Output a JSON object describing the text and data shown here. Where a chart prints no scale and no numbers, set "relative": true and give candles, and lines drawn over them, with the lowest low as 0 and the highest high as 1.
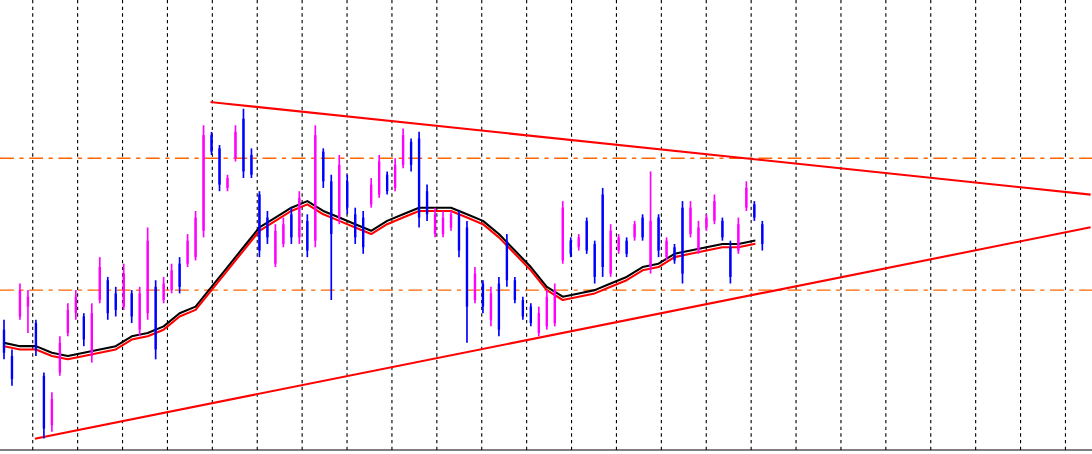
{
  "chart_data": {
    "type": "candlestick",
    "relative": true,
    "categories": [
      null,
      null,
      null,
      null,
      null,
      null,
      null,
      null,
      null,
      null,
      null,
      null,
      null,
      null,
      null,
      null,
      null,
      null,
      null,
      null,
      null,
      null,
      null,
      null,
      null,
      null,
      null,
      null,
      null,
      null,
      null,
      null,
      null,
      null,
      null,
      null,
      null,
      null,
      null,
      null,
      null,
      null,
      null,
      null,
      null,
      null,
      null,
      null,
      null,
      null,
      null,
      null,
      null,
      null,
      null,
      null,
      null,
      null,
      null,
      null,
      null,
      null,
      null,
      null,
      null,
      null,
      null,
      null,
      null,
      null,
      null,
      null,
      null,
      null,
      null,
      null,
      null,
      null,
      null,
      null,
      null,
      null,
      null,
      null,
      null,
      null,
      null,
      null,
      null,
      null,
      null,
      null,
      null,
      null,
      null,
      null,
      null,
      null,
      null,
      null,
      null,
      null,
      null,
      null,
      null,
      null,
      null,
      null,
      null,
      null,
      null,
      null,
      null,
      null,
      null,
      null,
      null,
      null,
      null,
      null,
      null,
      null,
      null,
      null,
      null,
      null,
      null,
      null,
      null,
      null,
      null,
      null,
      null,
      null,
      null,
      null,
      null
    ],
    "ohlc": [
      [
        0.33,
        0.36,
        0.24,
        0.26
      ],
      [
        0.25,
        0.27,
        0.16,
        0.18
      ],
      [
        0.37,
        0.47,
        0.36,
        0.45
      ],
      [
        0.4,
        0.45,
        0.32,
        0.43
      ],
      [
        0.35,
        0.36,
        0.25,
        0.27
      ],
      [
        0.19,
        0.2,
        0,
        0.03
      ],
      [
        0.04,
        0.14,
        0.02,
        0.12
      ],
      [
        0.2,
        0.31,
        0.19,
        0.29
      ],
      [
        0.32,
        0.41,
        0.31,
        0.39
      ],
      [
        0.38,
        0.45,
        0.36,
        0.43
      ],
      [
        0.37,
        0.38,
        0.28,
        0.3
      ],
      [
        0.25,
        0.41,
        0.23,
        0.38
      ],
      [
        0.42,
        0.55,
        0.41,
        0.52
      ],
      [
        0.48,
        0.49,
        0.36,
        0.38
      ],
      [
        0.44,
        0.46,
        0.37,
        0.39
      ],
      [
        0.4,
        0.53,
        0.39,
        0.5
      ],
      [
        0.44,
        0.45,
        0.35,
        0.37
      ],
      [
        0.33,
        0.46,
        0.31,
        0.44
      ],
      [
        0.38,
        0.64,
        0.36,
        0.6
      ],
      [
        0.46,
        0.48,
        0.24,
        0.27
      ],
      [
        0.42,
        0.49,
        0.41,
        0.47
      ],
      [
        0.45,
        0.53,
        0.44,
        0.51
      ],
      [
        0.53,
        0.55,
        0.44,
        0.46
      ],
      [
        0.53,
        0.62,
        0.52,
        0.6
      ],
      [
        0.55,
        0.69,
        0.54,
        0.67
      ],
      [
        0.63,
        0.95,
        0.61,
        0.92
      ],
      [
        0.92,
        0.93,
        0.86,
        0.87
      ],
      [
        0.88,
        0.89,
        0.75,
        0.77
      ],
      [
        0.76,
        0.8,
        0.75,
        0.79
      ],
      [
        0.85,
        0.95,
        0.84,
        0.93
      ],
      [
        0.97,
        1,
        0.79,
        0.81
      ],
      [
        0.86,
        0.88,
        0.79,
        0.8
      ],
      [
        0.74,
        0.75,
        0.55,
        0.57
      ],
      [
        0.67,
        0.69,
        0.59,
        0.61
      ],
      [
        0.53,
        0.65,
        0.52,
        0.63
      ],
      [
        0.59,
        0.67,
        0.58,
        0.65
      ],
      [
        0.68,
        0.7,
        0.59,
        0.61
      ],
      [
        0.61,
        0.75,
        0.59,
        0.73
      ],
      [
        0.66,
        0.68,
        0.55,
        0.57
      ],
      [
        0.6,
        0.95,
        0.58,
        0.92
      ],
      [
        0.87,
        0.88,
        0.76,
        0.78
      ],
      [
        0.78,
        0.8,
        0.42,
        0.62
      ],
      [
        0.67,
        0.86,
        0.65,
        0.83
      ],
      [
        0.78,
        0.8,
        0.68,
        0.7
      ],
      [
        0.68,
        0.7,
        0.59,
        0.61
      ],
      [
        0.67,
        0.69,
        0.56,
        0.58
      ],
      [
        0.71,
        0.79,
        0.7,
        0.77
      ],
      [
        0.74,
        0.86,
        0.73,
        0.84
      ],
      [
        0.8,
        0.81,
        0.74,
        0.75
      ],
      [
        0.76,
        0.85,
        0.75,
        0.83
      ],
      [
        0.83,
        0.94,
        0.82,
        0.92
      ],
      [
        0.9,
        0.91,
        0.81,
        0.83
      ],
      [
        0.91,
        0.93,
        0.64,
        0.67
      ],
      [
        0.75,
        0.77,
        0.66,
        0.68
      ],
      [
        0.62,
        0.7,
        0.61,
        0.68
      ],
      [
        0.62,
        0.69,
        0.61,
        0.67
      ],
      [
        0.64,
        0.69,
        0.63,
        0.68
      ],
      [
        0.68,
        0.69,
        0.55,
        0.57
      ],
      [
        0.64,
        0.66,
        0.29,
        0.4
      ],
      [
        0.42,
        0.52,
        0.41,
        0.5
      ],
      [
        0.47,
        0.48,
        0.38,
        0.4
      ],
      [
        0.36,
        0.46,
        0.34,
        0.44
      ],
      [
        0.47,
        0.49,
        0.31,
        0.33
      ],
      [
        0.6,
        0.62,
        0.46,
        0.48
      ],
      [
        0.48,
        0.49,
        0.41,
        0.42
      ],
      [
        0.42,
        0.43,
        0.36,
        0.37
      ],
      [
        0.4,
        0.41,
        0.34,
        0.35
      ],
      [
        0.32,
        0.4,
        0.31,
        0.38
      ],
      [
        0.34,
        0.45,
        0.33,
        0.43
      ],
      [
        0.35,
        0.47,
        0.34,
        0.45
      ],
      [
        0.54,
        0.72,
        0.53,
        0.7
      ],
      [
        0.6,
        0.61,
        0.55,
        0.56
      ],
      [
        0.58,
        0.62,
        0.57,
        0.61
      ],
      [
        0.66,
        0.67,
        0.56,
        0.57
      ],
      [
        0.59,
        0.6,
        0.47,
        0.49
      ],
      [
        0.74,
        0.76,
        0.49,
        0.52
      ],
      [
        0.5,
        0.65,
        0.49,
        0.63
      ],
      [
        0.57,
        0.62,
        0.56,
        0.61
      ],
      [
        0.6,
        0.61,
        0.55,
        0.56
      ],
      [
        0.61,
        0.66,
        0.6,
        0.65
      ],
      [
        0.67,
        0.68,
        0.6,
        0.61
      ],
      [
        0.52,
        0.81,
        0.5,
        0.66
      ],
      [
        0.67,
        0.68,
        0.55,
        0.57
      ],
      [
        0.55,
        0.61,
        0.54,
        0.6
      ],
      [
        0.58,
        0.59,
        0.53,
        0.54
      ],
      [
        0.7,
        0.72,
        0.47,
        0.5
      ],
      [
        0.62,
        0.72,
        0.61,
        0.7
      ],
      [
        0.57,
        0.66,
        0.56,
        0.64
      ],
      [
        0.64,
        0.68,
        0.63,
        0.67
      ],
      [
        0.66,
        0.74,
        0.65,
        0.72
      ],
      [
        0.66,
        0.67,
        0.6,
        0.61
      ],
      [
        0.58,
        0.6,
        0.47,
        0.49
      ],
      [
        0.57,
        0.67,
        0.56,
        0.65
      ],
      [
        0.7,
        0.78,
        0.69,
        0.76
      ],
      [
        0.71,
        0.72,
        0.66,
        0.67
      ],
      [
        0.65,
        0.66,
        0.57,
        0.59
      ],
      null,
      null,
      null,
      null,
      null,
      null,
      null,
      null,
      null,
      null,
      null,
      null,
      null,
      null,
      null,
      null,
      null,
      null,
      null,
      null,
      null,
      null,
      null,
      null,
      null,
      null,
      null,
      null,
      null,
      null,
      null,
      null,
      null,
      null,
      null,
      null,
      null,
      null,
      null,
      null,
      null
    ],
    "colors": [
      "#0000ff",
      "#0000ff",
      "#ff00ff",
      "#ff00ff",
      "#0000ff",
      "#0000ff",
      "#ff00ff",
      "#ff00ff",
      "#ff00ff",
      "#ff00ff",
      "#0000ff",
      "#ff00ff",
      "#ff00ff",
      "#0000ff",
      "#0000ff",
      "#ff00ff",
      "#0000ff",
      "#ff00ff",
      "#ff00ff",
      "#0000ff",
      "#ff00ff",
      "#ff00ff",
      "#0000ff",
      "#ff00ff",
      "#ff00ff",
      "#ff00ff",
      "#0000ff",
      "#0000ff",
      "#ff00ff",
      "#ff00ff",
      "#0000ff",
      "#0000ff",
      "#0000ff",
      "#0000ff",
      "#ff00ff",
      "#ff00ff",
      "#0000ff",
      "#ff00ff",
      "#0000ff",
      "#ff00ff",
      "#0000ff",
      "#0000ff",
      "#ff00ff",
      "#0000ff",
      "#0000ff",
      "#0000ff",
      "#ff00ff",
      "#ff00ff",
      "#0000ff",
      "#ff00ff",
      "#ff00ff",
      "#0000ff",
      "#0000ff",
      "#0000ff",
      "#ff00ff",
      "#ff00ff",
      "#ff00ff",
      "#0000ff",
      "#0000ff",
      "#ff00ff",
      "#0000ff",
      "#ff00ff",
      "#0000ff",
      "#0000ff",
      "#0000ff",
      "#0000ff",
      "#0000ff",
      "#ff00ff",
      "#ff00ff",
      "#ff00ff",
      "#ff00ff",
      "#0000ff",
      "#ff00ff",
      "#0000ff",
      "#0000ff",
      "#0000ff",
      "#ff00ff",
      "#ff00ff",
      "#0000ff",
      "#ff00ff",
      "#0000ff",
      "#ff00ff",
      "#0000ff",
      "#ff00ff",
      "#0000ff",
      "#0000ff",
      "#ff00ff",
      "#ff00ff",
      "#ff00ff",
      "#ff00ff",
      "#0000ff",
      "#0000ff",
      "#ff00ff",
      "#ff00ff",
      "#0000ff",
      "#0000ff",
      null,
      null,
      null,
      null,
      null,
      null,
      null,
      null,
      null,
      null,
      null,
      null,
      null,
      null,
      null,
      null,
      null,
      null,
      null,
      null,
      null,
      null,
      null,
      null,
      null,
      null,
      null,
      null,
      null,
      null,
      null,
      null,
      null,
      null,
      null,
      null,
      null,
      null,
      null,
      null,
      null
    ],
    "series": [
      {
        "type": "line",
        "color": "#000000",
        "values": [
          0.29,
          null,
          0.28,
          null,
          0.28,
          null,
          0.26,
          null,
          0.25,
          null,
          0.26,
          null,
          0.27,
          null,
          0.28,
          null,
          0.31,
          null,
          0.32,
          null,
          0.34,
          null,
          0.38,
          null,
          0.4,
          null,
          0.46,
          null,
          0.52,
          null,
          0.58,
          null,
          0.64,
          null,
          0.67,
          null,
          0.7,
          null,
          0.72,
          null,
          0.69,
          null,
          0.67,
          null,
          0.65,
          null,
          0.63,
          null,
          0.66,
          null,
          0.68,
          null,
          0.7,
          null,
          0.7,
          null,
          0.7,
          null,
          0.68,
          null,
          0.66,
          null,
          0.62,
          null,
          0.57,
          null,
          0.52,
          null,
          0.46,
          null,
          0.43,
          null,
          0.44,
          null,
          0.45,
          null,
          0.47,
          null,
          0.49,
          null,
          0.52,
          null,
          0.53,
          null,
          0.56,
          null,
          0.57,
          null,
          0.58,
          null,
          0.59,
          null,
          0.59,
          null,
          0.6,
          null,
          null,
          null,
          null,
          null,
          null,
          null,
          null,
          null,
          null,
          null,
          null,
          null,
          null,
          null,
          null,
          null,
          null,
          null,
          null,
          null,
          null,
          null,
          null,
          null,
          null,
          null,
          null,
          null,
          null,
          null,
          null,
          null,
          null,
          null,
          null,
          null,
          null,
          null,
          null,
          null,
          null
        ]
      },
      {
        "type": "line",
        "color": "#ff0000",
        "values": [
          0.28,
          null,
          0.27,
          null,
          0.27,
          null,
          0.25,
          null,
          0.24,
          null,
          0.25,
          null,
          0.26,
          null,
          0.27,
          null,
          0.3,
          null,
          0.31,
          null,
          0.33,
          null,
          0.37,
          null,
          0.39,
          null,
          0.45,
          null,
          0.51,
          null,
          0.57,
          null,
          0.63,
          null,
          0.66,
          null,
          0.69,
          null,
          0.71,
          null,
          0.68,
          null,
          0.66,
          null,
          0.64,
          null,
          0.62,
          null,
          0.65,
          null,
          0.67,
          null,
          0.69,
          null,
          0.69,
          null,
          0.69,
          null,
          0.67,
          null,
          0.65,
          null,
          0.61,
          null,
          0.56,
          null,
          0.51,
          null,
          0.45,
          null,
          0.42,
          null,
          0.43,
          null,
          0.44,
          null,
          0.46,
          null,
          0.48,
          null,
          0.51,
          null,
          0.52,
          null,
          0.55,
          null,
          0.56,
          null,
          0.57,
          null,
          0.58,
          null,
          0.58,
          null,
          0.59,
          null,
          null,
          null,
          null,
          null,
          null,
          null,
          null,
          null,
          null,
          null,
          null,
          null,
          null,
          null,
          null,
          null,
          null,
          null,
          null,
          null,
          null,
          null,
          null,
          null,
          null,
          null,
          null,
          null,
          null,
          null,
          null,
          null,
          null,
          null,
          null,
          null,
          null,
          null,
          null,
          null,
          null
        ]
      },
      {
        "type": "line",
        "color": "#ff0000",
        "values": [
          null,
          null,
          null,
          null,
          null,
          null,
          null,
          null,
          null,
          null,
          null,
          null,
          null,
          null,
          null,
          null,
          null,
          null,
          null,
          null,
          null,
          null,
          null,
          null,
          null,
          null,
          1.02,
          null,
          null,
          null,
          null,
          null,
          null,
          null,
          null,
          null,
          null,
          null,
          null,
          null,
          null,
          null,
          null,
          null,
          null,
          null,
          null,
          null,
          null,
          null,
          null,
          null,
          null,
          null,
          null,
          null,
          null,
          null,
          null,
          null,
          null,
          null,
          null,
          null,
          null,
          null,
          null,
          null,
          null,
          null,
          null,
          null,
          null,
          null,
          null,
          null,
          null,
          null,
          null,
          null,
          null,
          null,
          null,
          null,
          null,
          null,
          null,
          null,
          null,
          null,
          null,
          null,
          null,
          null,
          null,
          null,
          null,
          null,
          null,
          null,
          null,
          null,
          null,
          null,
          null,
          null,
          null,
          null,
          null,
          null,
          null,
          null,
          null,
          null,
          null,
          null,
          null,
          null,
          null,
          null,
          null,
          null,
          null,
          null,
          null,
          null,
          null,
          null,
          null,
          null,
          null,
          null,
          null,
          null,
          null,
          null,
          0.74
        ]
      },
      {
        "type": "line",
        "color": "#ff0000",
        "values": [
          null,
          null,
          null,
          null,
          0,
          null,
          null,
          null,
          null,
          null,
          null,
          null,
          null,
          null,
          null,
          null,
          null,
          null,
          null,
          null,
          null,
          null,
          null,
          null,
          null,
          null,
          null,
          null,
          null,
          null,
          null,
          null,
          null,
          null,
          null,
          null,
          null,
          null,
          null,
          null,
          null,
          null,
          null,
          null,
          null,
          null,
          null,
          null,
          null,
          null,
          null,
          null,
          null,
          null,
          null,
          null,
          null,
          null,
          null,
          null,
          null,
          null,
          null,
          null,
          null,
          null,
          null,
          null,
          null,
          null,
          null,
          null,
          null,
          null,
          null,
          null,
          null,
          null,
          null,
          null,
          null,
          null,
          null,
          null,
          null,
          null,
          null,
          null,
          null,
          null,
          null,
          null,
          null,
          null,
          null,
          null,
          null,
          null,
          null,
          null,
          null,
          null,
          null,
          null,
          null,
          null,
          null,
          null,
          null,
          null,
          null,
          null,
          null,
          null,
          null,
          null,
          null,
          null,
          null,
          null,
          null,
          null,
          null,
          null,
          null,
          null,
          null,
          null,
          null,
          null,
          null,
          null,
          null,
          null,
          null,
          null,
          0.64
        ]
      }
    ],
    "ref_lines": [
      {
        "axis": "y",
        "value": 0.85,
        "color": "#ff6600",
        "line_style": "dashed"
      },
      {
        "axis": "y",
        "value": 0.45,
        "color": "#ff6600",
        "line_style": "dashed"
      }
    ]
  }
}
